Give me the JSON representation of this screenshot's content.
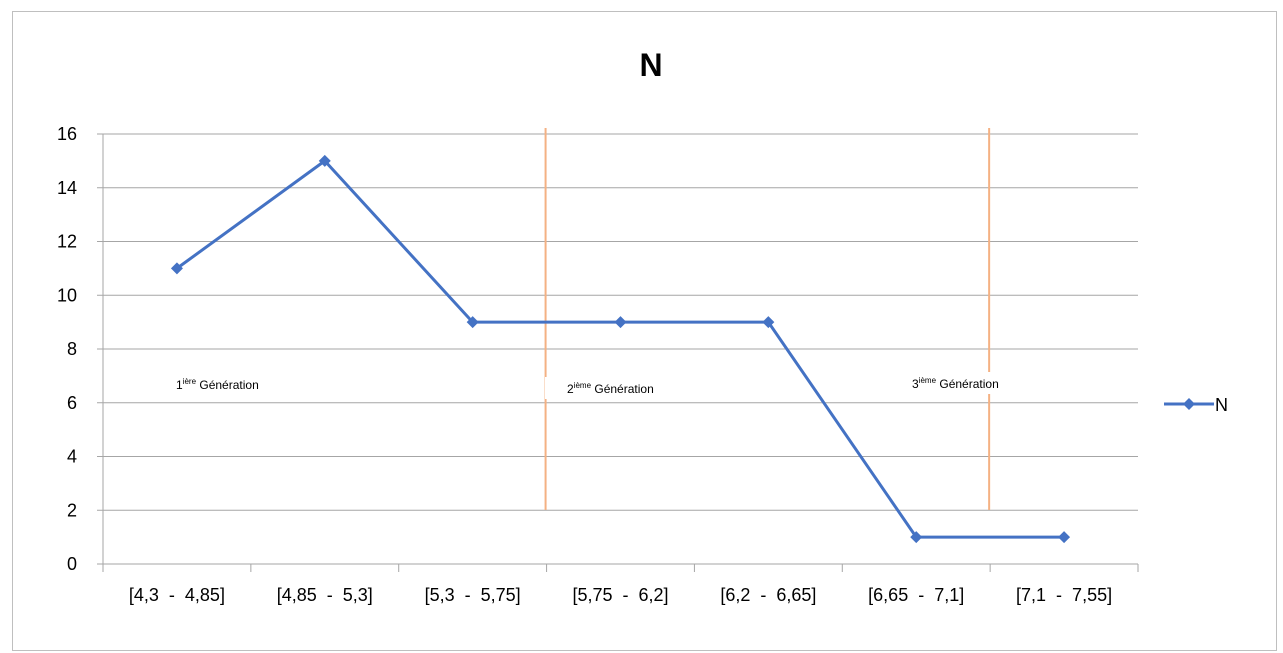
{
  "chart_data": {
    "type": "line",
    "title": "N",
    "categories": [
      "[4,3  -  4,85]",
      "[4,85  -  5,3]",
      "[5,3  -  5,75]",
      "[5,75  -  6,2]",
      "[6,2  -  6,65]",
      "[6,65  -  7,1]",
      "[7,1  -  7,55]"
    ],
    "series": [
      {
        "name": "N",
        "values": [
          11,
          15,
          9,
          9,
          9,
          1,
          1
        ],
        "color": "#4472C4",
        "marker": "diamond"
      }
    ],
    "ylim": [
      0,
      16
    ],
    "yticks": [
      0,
      2,
      4,
      6,
      8,
      10,
      12,
      14,
      16
    ],
    "grid": true,
    "legend": "right",
    "separators": {
      "after_category_index": [
        2,
        5
      ],
      "color": "#F4B183"
    },
    "annotations": [
      {
        "num": "1",
        "sup": "ière",
        "text": " Génération"
      },
      {
        "num": "2",
        "sup": "ième",
        "text": " Génération"
      },
      {
        "num": "3",
        "sup": "ième",
        "text": " Génération"
      }
    ]
  }
}
